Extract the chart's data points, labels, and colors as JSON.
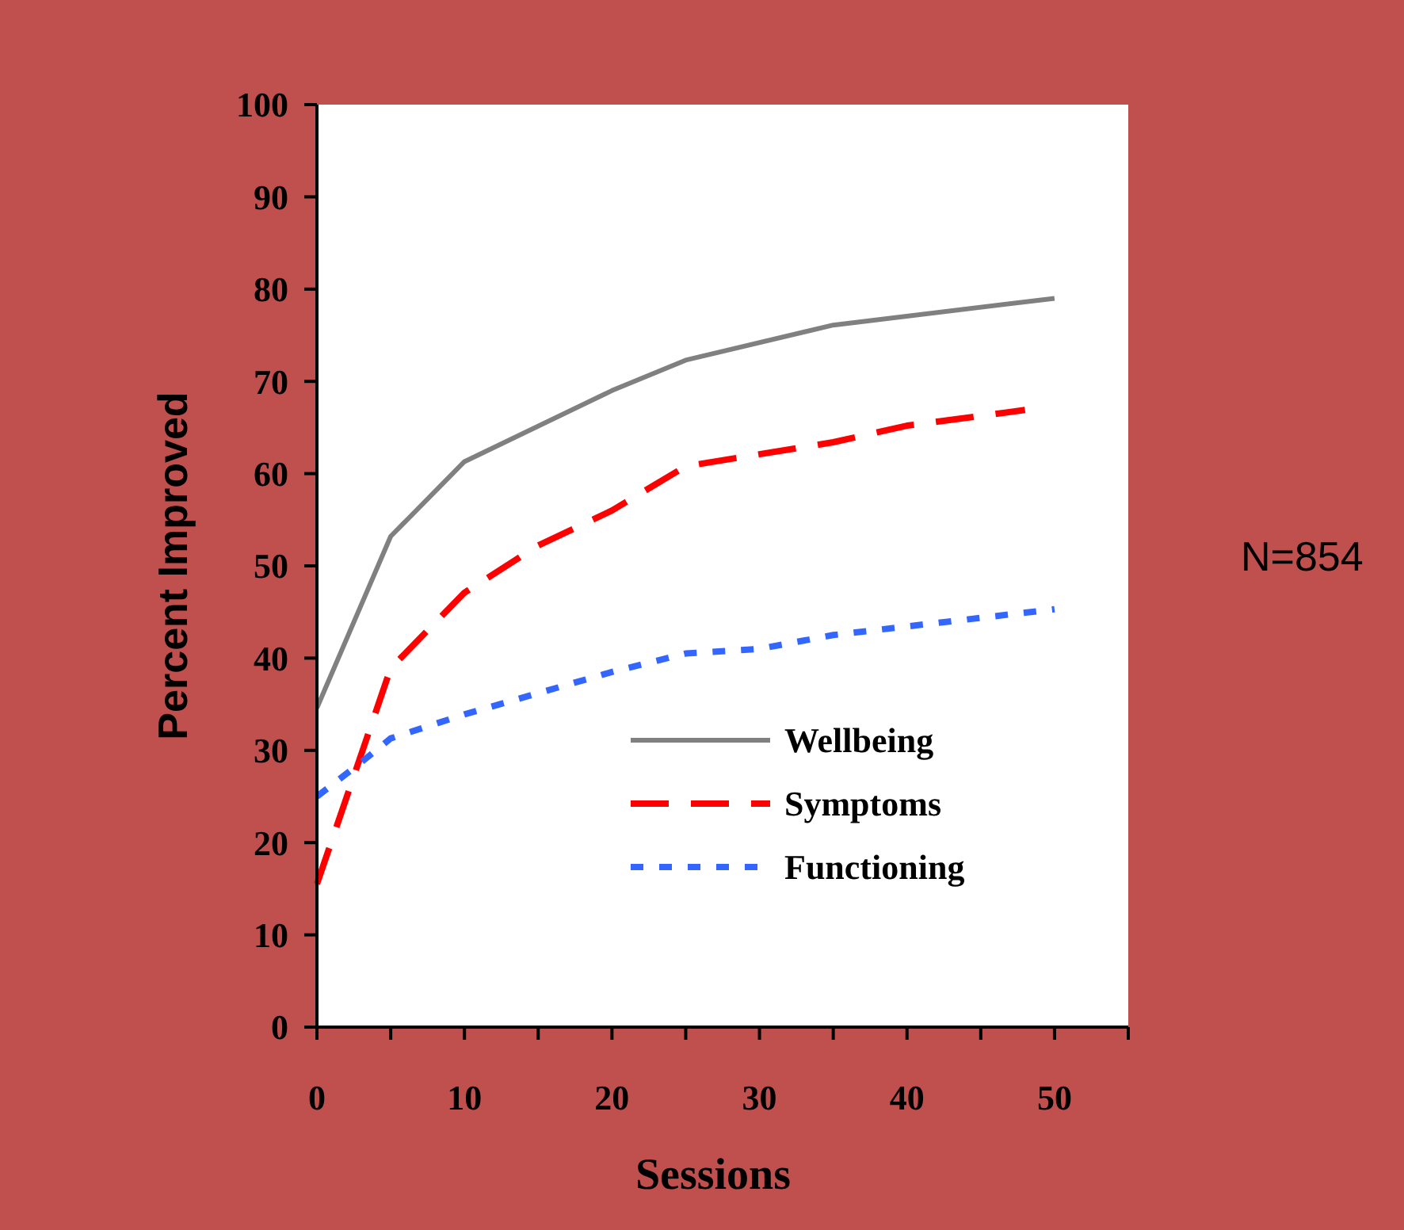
{
  "chart_data": {
    "type": "line",
    "xlabel": "Sessions",
    "ylabel": "Percent Improved",
    "annotations": [
      "N=854"
    ],
    "xlim": [
      0,
      55
    ],
    "xticks": [
      0,
      {
        "value": 5,
        "label": null
      },
      10,
      {
        "value": 15,
        "label": null
      },
      20,
      {
        "value": 25,
        "label": null
      },
      30,
      {
        "value": 35,
        "label": null
      },
      40,
      {
        "value": 45,
        "label": null
      },
      50,
      {
        "value": 55,
        "label": null
      }
    ],
    "ylim": [
      0,
      100
    ],
    "yticks": [
      0,
      10,
      20,
      30,
      40,
      50,
      60,
      70,
      80,
      90,
      100
    ],
    "grid": false,
    "legend": "bottom right",
    "marker": "none",
    "series": [
      {
        "name": "Wellbeing",
        "color": "#808080",
        "line_style": "solid",
        "x": [
          0,
          5,
          10,
          20,
          25,
          35,
          50
        ],
        "values": [
          34.6,
          53.2,
          61.3,
          69,
          72.3,
          76.1,
          79
        ]
      },
      {
        "name": "Symptoms",
        "color": "#ff0000",
        "line_style": "dashed",
        "x": [
          0,
          5,
          10,
          15,
          20,
          25,
          35,
          40,
          48
        ],
        "values": [
          15.5,
          38.9,
          47.1,
          52.2,
          56,
          60.8,
          63.4,
          65.2,
          66.9
        ]
      },
      {
        "name": "Functioning",
        "color": "#3366ff",
        "line_style": "dotted",
        "x": [
          0,
          3,
          5,
          10,
          15,
          20,
          25,
          30,
          35,
          50
        ],
        "values": [
          25,
          28.7,
          31.3,
          33.9,
          36.2,
          38.5,
          40.5,
          41,
          42.5,
          45.3
        ]
      }
    ]
  }
}
